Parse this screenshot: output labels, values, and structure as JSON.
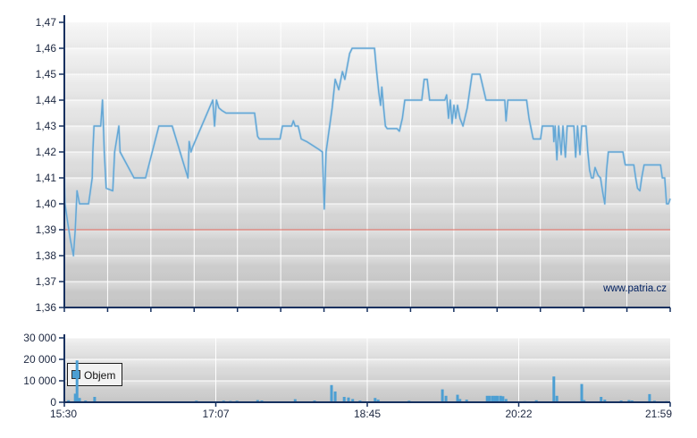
{
  "watermark": "www.patria.cz",
  "legend": {
    "label": "Objem"
  },
  "colors": {
    "price_line": "#64a7d5",
    "price_line_glow": "#a8cfe8",
    "volume_bar": "#4c9fd3",
    "axis": "#16305f",
    "grid": "#ffffff",
    "tick_label": "#1c2740",
    "reference_line": "#df584b",
    "watermark": "#002060",
    "main_bg_top": "#f3f3f3",
    "main_bg_bottom": "#c6c6c6",
    "vol_bg_top": "#ebebeb",
    "vol_bg_bottom": "#c9c9c9",
    "legend_box_bg": "#f2f2f2",
    "legend_box_border": "#1a1a1a"
  },
  "chart_data": [
    {
      "type": "line",
      "name": "price",
      "title": "",
      "xlabel": "",
      "ylabel": "",
      "x_ticks": [
        "15:30",
        "17:07",
        "18:45",
        "20:22",
        "21:59"
      ],
      "x_minor_divisions": 14,
      "y_ticks": [
        1.47,
        1.46,
        1.45,
        1.44,
        1.43,
        1.42,
        1.41,
        1.4,
        1.39,
        1.38,
        1.37,
        1.36
      ],
      "y_tick_labels": [
        "1,47",
        "1,46",
        "1,45",
        "1,44",
        "1,43",
        "1,42",
        "1,41",
        "1,40",
        "1,39",
        "1,38",
        "1,37",
        "1,36"
      ],
      "ylim": [
        1.36,
        1.47
      ],
      "grid": true,
      "reference_line": 1.39,
      "points": [
        [
          0.0,
          1.41
        ],
        [
          0.001,
          1.4
        ],
        [
          0.006,
          1.392
        ],
        [
          0.01,
          1.386
        ],
        [
          0.015,
          1.38
        ],
        [
          0.018,
          1.39
        ],
        [
          0.021,
          1.405
        ],
        [
          0.025,
          1.4
        ],
        [
          0.04,
          1.4
        ],
        [
          0.043,
          1.405
        ],
        [
          0.046,
          1.41
        ],
        [
          0.047,
          1.42
        ],
        [
          0.049,
          1.43
        ],
        [
          0.06,
          1.43
        ],
        [
          0.063,
          1.44
        ],
        [
          0.066,
          1.42
        ],
        [
          0.069,
          1.406
        ],
        [
          0.08,
          1.405
        ],
        [
          0.083,
          1.42
        ],
        [
          0.09,
          1.43
        ],
        [
          0.092,
          1.42
        ],
        [
          0.115,
          1.41
        ],
        [
          0.134,
          1.41
        ],
        [
          0.156,
          1.43
        ],
        [
          0.178,
          1.43
        ],
        [
          0.204,
          1.41
        ],
        [
          0.206,
          1.424
        ],
        [
          0.209,
          1.42
        ],
        [
          0.212,
          1.422
        ],
        [
          0.245,
          1.44
        ],
        [
          0.248,
          1.43
        ],
        [
          0.251,
          1.44
        ],
        [
          0.255,
          1.437
        ],
        [
          0.26,
          1.436
        ],
        [
          0.267,
          1.435
        ],
        [
          0.314,
          1.435
        ],
        [
          0.319,
          1.426
        ],
        [
          0.322,
          1.425
        ],
        [
          0.356,
          1.425
        ],
        [
          0.36,
          1.43
        ],
        [
          0.375,
          1.43
        ],
        [
          0.378,
          1.432
        ],
        [
          0.381,
          1.43
        ],
        [
          0.386,
          1.43
        ],
        [
          0.391,
          1.425
        ],
        [
          0.4,
          1.424
        ],
        [
          0.42,
          1.421
        ],
        [
          0.426,
          1.42
        ],
        [
          0.429,
          1.398
        ],
        [
          0.432,
          1.42
        ],
        [
          0.435,
          1.425
        ],
        [
          0.442,
          1.437
        ],
        [
          0.447,
          1.448
        ],
        [
          0.453,
          1.444
        ],
        [
          0.459,
          1.451
        ],
        [
          0.463,
          1.448
        ],
        [
          0.471,
          1.458
        ],
        [
          0.475,
          1.46
        ],
        [
          0.512,
          1.46
        ],
        [
          0.515,
          1.452
        ],
        [
          0.519,
          1.443
        ],
        [
          0.522,
          1.438
        ],
        [
          0.524,
          1.445
        ],
        [
          0.527,
          1.437
        ],
        [
          0.53,
          1.43
        ],
        [
          0.533,
          1.429
        ],
        [
          0.549,
          1.429
        ],
        [
          0.553,
          1.428
        ],
        [
          0.558,
          1.433
        ],
        [
          0.562,
          1.44
        ],
        [
          0.59,
          1.44
        ],
        [
          0.594,
          1.448
        ],
        [
          0.599,
          1.448
        ],
        [
          0.603,
          1.44
        ],
        [
          0.628,
          1.44
        ],
        [
          0.631,
          1.442
        ],
        [
          0.634,
          1.433
        ],
        [
          0.637,
          1.44
        ],
        [
          0.64,
          1.431
        ],
        [
          0.643,
          1.438
        ],
        [
          0.646,
          1.433
        ],
        [
          0.649,
          1.438
        ],
        [
          0.653,
          1.433
        ],
        [
          0.658,
          1.43
        ],
        [
          0.665,
          1.437
        ],
        [
          0.673,
          1.45
        ],
        [
          0.686,
          1.45
        ],
        [
          0.692,
          1.444
        ],
        [
          0.696,
          1.44
        ],
        [
          0.727,
          1.44
        ],
        [
          0.729,
          1.432
        ],
        [
          0.732,
          1.44
        ],
        [
          0.763,
          1.44
        ],
        [
          0.767,
          1.433
        ],
        [
          0.773,
          1.426
        ],
        [
          0.774,
          1.425
        ],
        [
          0.786,
          1.425
        ],
        [
          0.789,
          1.43
        ],
        [
          0.807,
          1.43
        ],
        [
          0.808,
          1.424
        ],
        [
          0.81,
          1.43
        ],
        [
          0.813,
          1.417
        ],
        [
          0.816,
          1.43
        ],
        [
          0.82,
          1.419
        ],
        [
          0.823,
          1.43
        ],
        [
          0.827,
          1.418
        ],
        [
          0.83,
          1.43
        ],
        [
          0.841,
          1.43
        ],
        [
          0.844,
          1.418
        ],
        [
          0.847,
          1.43
        ],
        [
          0.851,
          1.419
        ],
        [
          0.854,
          1.43
        ],
        [
          0.861,
          1.43
        ],
        [
          0.864,
          1.42
        ],
        [
          0.867,
          1.413
        ],
        [
          0.87,
          1.41
        ],
        [
          0.873,
          1.41
        ],
        [
          0.876,
          1.414
        ],
        [
          0.881,
          1.411
        ],
        [
          0.885,
          1.41
        ],
        [
          0.889,
          1.404
        ],
        [
          0.892,
          1.4
        ],
        [
          0.895,
          1.413
        ],
        [
          0.898,
          1.42
        ],
        [
          0.922,
          1.42
        ],
        [
          0.925,
          1.416
        ],
        [
          0.926,
          1.415
        ],
        [
          0.94,
          1.415
        ],
        [
          0.943,
          1.41
        ],
        [
          0.946,
          1.406
        ],
        [
          0.95,
          1.405
        ],
        [
          0.953,
          1.41
        ],
        [
          0.957,
          1.415
        ],
        [
          0.984,
          1.415
        ],
        [
          0.987,
          1.41
        ],
        [
          0.991,
          1.41
        ],
        [
          0.994,
          1.4
        ],
        [
          0.997,
          1.4
        ],
        [
          1.0,
          1.402
        ]
      ]
    },
    {
      "type": "bar",
      "name": "volume",
      "legend": "Objem",
      "x_ticks": [
        "15:30",
        "17:07",
        "18:45",
        "20:22",
        "21:59"
      ],
      "y_ticks": [
        30000,
        20000,
        10000,
        0
      ],
      "y_tick_labels": [
        "30 000",
        "20 000",
        "10 000",
        "0"
      ],
      "ylim": [
        0,
        30000
      ],
      "grid": true,
      "bars": [
        [
          0.007,
          900
        ],
        [
          0.018,
          4000
        ],
        [
          0.021,
          19500
        ],
        [
          0.025,
          2000
        ],
        [
          0.035,
          800
        ],
        [
          0.05,
          2500
        ],
        [
          0.1,
          400
        ],
        [
          0.218,
          700
        ],
        [
          0.263,
          700
        ],
        [
          0.274,
          600
        ],
        [
          0.285,
          700
        ],
        [
          0.319,
          1000
        ],
        [
          0.326,
          800
        ],
        [
          0.381,
          1400
        ],
        [
          0.413,
          800
        ],
        [
          0.441,
          8000
        ],
        [
          0.447,
          5000
        ],
        [
          0.462,
          2500
        ],
        [
          0.469,
          2200
        ],
        [
          0.476,
          1500
        ],
        [
          0.488,
          800
        ],
        [
          0.513,
          2000
        ],
        [
          0.518,
          1200
        ],
        [
          0.528,
          400
        ],
        [
          0.569,
          700
        ],
        [
          0.624,
          6000
        ],
        [
          0.63,
          3000
        ],
        [
          0.649,
          3500
        ],
        [
          0.653,
          1500
        ],
        [
          0.664,
          1200
        ],
        [
          0.698,
          3000
        ],
        [
          0.702,
          3000
        ],
        [
          0.707,
          3000
        ],
        [
          0.711,
          3000
        ],
        [
          0.715,
          3000
        ],
        [
          0.72,
          3000
        ],
        [
          0.724,
          2800
        ],
        [
          0.729,
          1500
        ],
        [
          0.76,
          500
        ],
        [
          0.779,
          900
        ],
        [
          0.808,
          12000
        ],
        [
          0.813,
          3000
        ],
        [
          0.854,
          8500
        ],
        [
          0.858,
          1000
        ],
        [
          0.886,
          2500
        ],
        [
          0.892,
          1200
        ],
        [
          0.919,
          800
        ],
        [
          0.932,
          1000
        ],
        [
          0.937,
          800
        ],
        [
          0.966,
          3800
        ],
        [
          0.974,
          700
        ],
        [
          0.994,
          500
        ]
      ]
    }
  ]
}
